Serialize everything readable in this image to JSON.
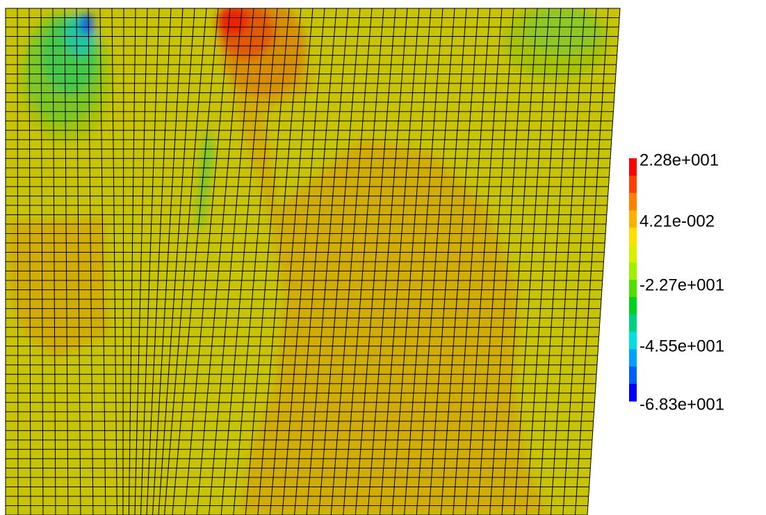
{
  "legend": {
    "labels": [
      "2.28e+001",
      "4.21e-002",
      "-2.27e+001",
      "-4.55e+001",
      "-6.83e+001"
    ]
  }
}
